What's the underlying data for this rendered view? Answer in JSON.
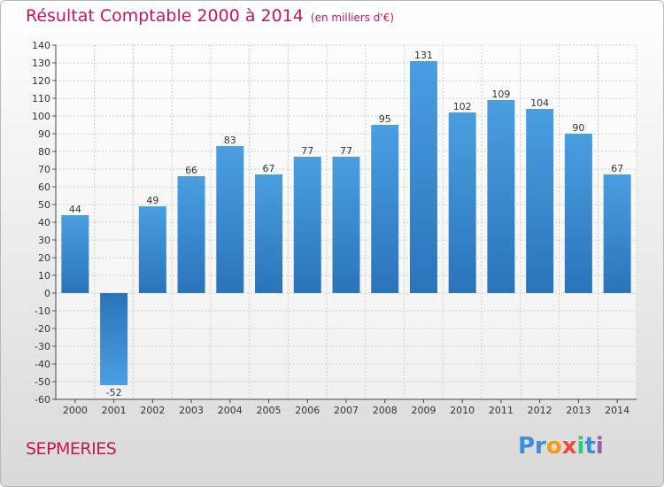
{
  "chart_data": {
    "type": "bar",
    "title": "Résultat Comptable 2000 à 2014",
    "unit": "(en milliers d'€)",
    "categories": [
      "2000",
      "2001",
      "2002",
      "2003",
      "2004",
      "2005",
      "2006",
      "2007",
      "2008",
      "2009",
      "2010",
      "2011",
      "2012",
      "2013",
      "2014"
    ],
    "values": [
      44,
      -52,
      49,
      66,
      83,
      67,
      77,
      77,
      95,
      131,
      102,
      109,
      104,
      90,
      67
    ],
    "ylim": [
      -60,
      140
    ],
    "ytick_step": 10,
    "xlabel": "",
    "ylabel": "",
    "grid": true,
    "bar_color": "#4a9fe0",
    "bar_color_dark": "#2a74b8"
  },
  "footer": {
    "city": "SEPMERIES",
    "logo_parts": [
      "Pr",
      "o",
      "x",
      "i",
      "t",
      "i"
    ]
  }
}
